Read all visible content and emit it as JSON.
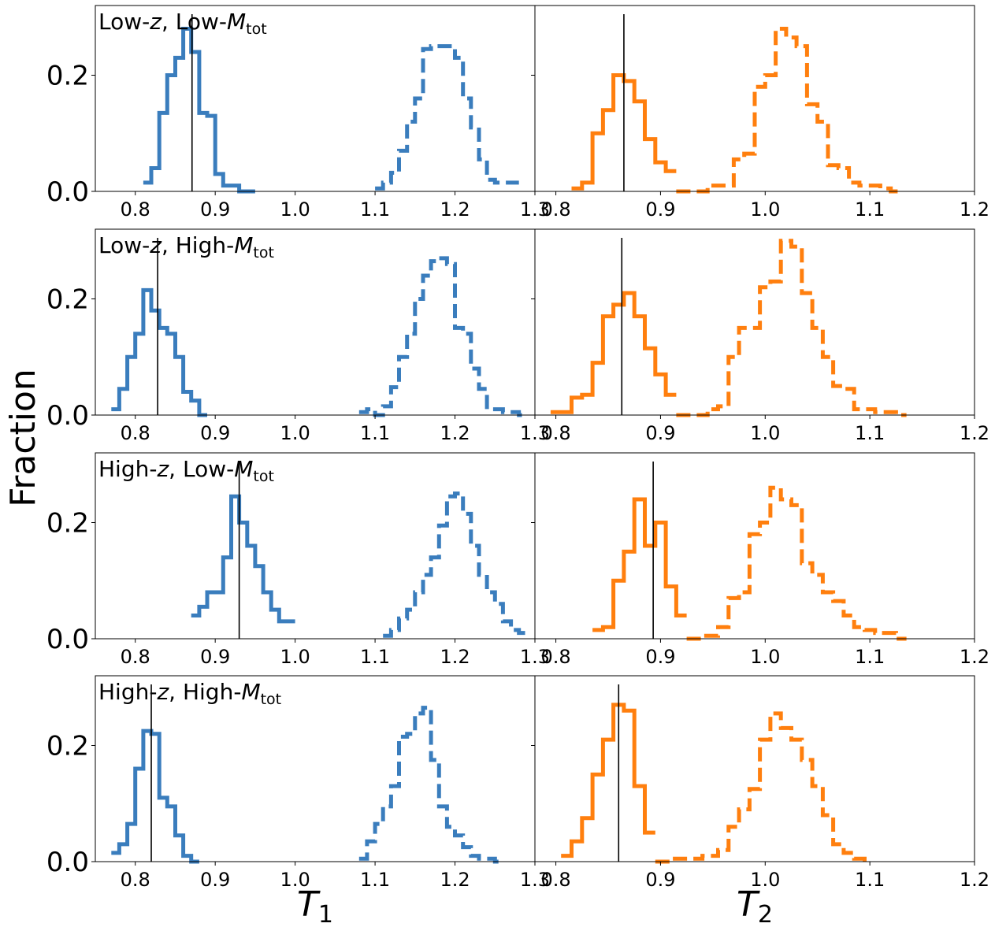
{
  "figure": {
    "ylabel": "Fraction",
    "xlabel_left": {
      "main": "T",
      "sub": "1"
    },
    "xlabel_right": {
      "main": "T",
      "sub": "2"
    },
    "colors": {
      "t1": "#3a7dbd",
      "t2": "#ff7f0e",
      "vline": "#000000",
      "frame": "#000000"
    }
  },
  "chart_data": [
    {
      "type": "histogram",
      "panel": "row1-left",
      "title_parts": [
        "Low-",
        "z",
        ", Low-",
        "M",
        "tot"
      ],
      "xlim": [
        0.75,
        1.3
      ],
      "ylim": [
        0,
        0.32
      ],
      "xticks": [
        "0.8",
        "0.9",
        "1.0",
        "1.1",
        "1.2",
        "1.3"
      ],
      "yticks": [
        "0.0",
        "0.2"
      ],
      "vline": 0.871,
      "series": [
        {
          "style": "solid",
          "edges": [
            0.81,
            0.82,
            0.83,
            0.84,
            0.85,
            0.86,
            0.87,
            0.88,
            0.89,
            0.9,
            0.91,
            0.92,
            0.93,
            0.94,
            0.95
          ],
          "values": [
            0.015,
            0.04,
            0.135,
            0.2,
            0.23,
            0.28,
            0.24,
            0.135,
            0.13,
            0.03,
            0.01,
            0.01,
            0.0,
            0.0
          ]
        },
        {
          "style": "dashed",
          "edges": [
            1.1,
            1.11,
            1.12,
            1.13,
            1.14,
            1.15,
            1.16,
            1.17,
            1.18,
            1.19,
            1.2,
            1.21,
            1.22,
            1.23,
            1.24,
            1.25,
            1.26,
            1.27,
            1.28
          ],
          "values": [
            0.005,
            0.015,
            0.032,
            0.07,
            0.12,
            0.16,
            0.245,
            0.25,
            0.25,
            0.25,
            0.23,
            0.16,
            0.11,
            0.055,
            0.02,
            0.015,
            0.015,
            0.015
          ]
        }
      ]
    },
    {
      "type": "histogram",
      "panel": "row1-right",
      "xlim": [
        0.78,
        1.2
      ],
      "ylim": [
        0,
        0.32
      ],
      "xticks": [
        "0.8",
        "0.9",
        "1.0",
        "1.1",
        "1.2"
      ],
      "vline": 0.865,
      "series": [
        {
          "style": "solid",
          "edges": [
            0.815,
            0.825,
            0.835,
            0.845,
            0.855,
            0.865,
            0.875,
            0.885,
            0.895,
            0.905,
            0.915
          ],
          "values": [
            0.005,
            0.015,
            0.1,
            0.14,
            0.2,
            0.19,
            0.155,
            0.09,
            0.05,
            0.035
          ]
        },
        {
          "style": "dashed",
          "edges": [
            0.915,
            0.93,
            0.945,
            0.96,
            0.97,
            0.98,
            0.99,
            1.0,
            1.01,
            1.02,
            1.03,
            1.04,
            1.05,
            1.06,
            1.07,
            1.08,
            1.09,
            1.1,
            1.11,
            1.12,
            1.13
          ],
          "values": [
            0.0,
            0.0,
            0.01,
            0.01,
            0.055,
            0.065,
            0.18,
            0.2,
            0.28,
            0.265,
            0.25,
            0.15,
            0.12,
            0.045,
            0.04,
            0.015,
            0.01,
            0.01,
            0.005,
            0.0
          ]
        }
      ]
    },
    {
      "type": "histogram",
      "panel": "row2-left",
      "title_parts": [
        "Low-",
        "z",
        ", High-",
        "M",
        "tot"
      ],
      "xlim": [
        0.75,
        1.3
      ],
      "ylim": [
        0,
        0.32
      ],
      "xticks": [
        "0.8",
        "0.9",
        "1.0",
        "1.1",
        "1.2",
        "1.3"
      ],
      "yticks": [
        "0.0",
        "0.2"
      ],
      "vline": 0.828,
      "series": [
        {
          "style": "solid",
          "edges": [
            0.77,
            0.78,
            0.79,
            0.8,
            0.81,
            0.82,
            0.83,
            0.84,
            0.85,
            0.86,
            0.87,
            0.88,
            0.89
          ],
          "values": [
            0.01,
            0.045,
            0.1,
            0.14,
            0.215,
            0.18,
            0.15,
            0.14,
            0.1,
            0.04,
            0.025,
            0.0
          ]
        },
        {
          "style": "dashed",
          "edges": [
            1.08,
            1.09,
            1.1,
            1.11,
            1.12,
            1.13,
            1.14,
            1.15,
            1.16,
            1.17,
            1.18,
            1.19,
            1.2,
            1.21,
            1.22,
            1.23,
            1.24,
            1.25,
            1.26,
            1.27,
            1.28,
            1.29
          ],
          "values": [
            0.005,
            0.01,
            0.0,
            0.015,
            0.048,
            0.1,
            0.14,
            0.2,
            0.24,
            0.265,
            0.27,
            0.26,
            0.15,
            0.14,
            0.08,
            0.045,
            0.01,
            0.01,
            0.005,
            0.005,
            0.0
          ]
        }
      ]
    },
    {
      "type": "histogram",
      "panel": "row2-right",
      "xlim": [
        0.78,
        1.2
      ],
      "ylim": [
        0,
        0.32
      ],
      "xticks": [
        "0.8",
        "0.9",
        "1.0",
        "1.1",
        "1.2"
      ],
      "vline": 0.863,
      "series": [
        {
          "style": "solid",
          "edges": [
            0.795,
            0.805,
            0.815,
            0.825,
            0.835,
            0.845,
            0.855,
            0.865,
            0.875,
            0.885,
            0.895,
            0.905,
            0.915
          ],
          "values": [
            0.005,
            0.005,
            0.03,
            0.035,
            0.09,
            0.17,
            0.19,
            0.21,
            0.17,
            0.115,
            0.07,
            0.035
          ]
        },
        {
          "style": "dashed",
          "edges": [
            0.915,
            0.93,
            0.945,
            0.955,
            0.965,
            0.975,
            0.985,
            0.995,
            1.005,
            1.015,
            1.025,
            1.035,
            1.045,
            1.055,
            1.065,
            1.075,
            1.085,
            1.095,
            1.105,
            1.115,
            1.125,
            1.135
          ],
          "values": [
            0.0,
            0.0,
            0.01,
            0.015,
            0.1,
            0.15,
            0.15,
            0.22,
            0.23,
            0.3,
            0.29,
            0.21,
            0.15,
            0.1,
            0.05,
            0.045,
            0.01,
            0.01,
            0.005,
            0.005,
            0.0
          ]
        }
      ]
    },
    {
      "type": "histogram",
      "panel": "row3-left",
      "title_parts": [
        "High-",
        "z",
        ", Low-",
        "M",
        "tot"
      ],
      "xlim": [
        0.75,
        1.3
      ],
      "ylim": [
        0,
        0.32
      ],
      "xticks": [
        "0.8",
        "0.9",
        "1.0",
        "1.1",
        "1.2",
        "1.3"
      ],
      "yticks": [
        "0.0",
        "0.2"
      ],
      "vline": 0.93,
      "series": [
        {
          "style": "solid",
          "edges": [
            0.87,
            0.88,
            0.89,
            0.9,
            0.91,
            0.92,
            0.93,
            0.94,
            0.95,
            0.96,
            0.97,
            0.98,
            0.99,
            1.0
          ],
          "values": [
            0.04,
            0.055,
            0.08,
            0.08,
            0.14,
            0.245,
            0.2,
            0.16,
            0.125,
            0.08,
            0.05,
            0.03,
            0.03
          ]
        },
        {
          "style": "dashed",
          "edges": [
            1.11,
            1.12,
            1.13,
            1.14,
            1.15,
            1.16,
            1.17,
            1.18,
            1.19,
            1.2,
            1.21,
            1.22,
            1.23,
            1.24,
            1.25,
            1.26,
            1.27,
            1.28,
            1.29
          ],
          "values": [
            0.005,
            0.015,
            0.035,
            0.05,
            0.08,
            0.11,
            0.14,
            0.195,
            0.245,
            0.25,
            0.215,
            0.16,
            0.11,
            0.08,
            0.06,
            0.03,
            0.015,
            0.01
          ]
        }
      ]
    },
    {
      "type": "histogram",
      "panel": "row3-right",
      "xlim": [
        0.78,
        1.2
      ],
      "ylim": [
        0,
        0.32
      ],
      "xticks": [
        "0.8",
        "0.9",
        "1.0",
        "1.1",
        "1.2"
      ],
      "vline": 0.893,
      "series": [
        {
          "style": "solid",
          "edges": [
            0.835,
            0.845,
            0.855,
            0.865,
            0.875,
            0.885,
            0.895,
            0.905,
            0.915,
            0.925
          ],
          "values": [
            0.015,
            0.02,
            0.1,
            0.15,
            0.24,
            0.16,
            0.2,
            0.09,
            0.04
          ]
        },
        {
          "style": "dashed",
          "edges": [
            0.925,
            0.94,
            0.955,
            0.965,
            0.975,
            0.985,
            0.995,
            1.005,
            1.015,
            1.025,
            1.035,
            1.045,
            1.055,
            1.065,
            1.075,
            1.085,
            1.095,
            1.105,
            1.115,
            1.125,
            1.135
          ],
          "values": [
            0.0,
            0.005,
            0.02,
            0.07,
            0.08,
            0.18,
            0.2,
            0.26,
            0.24,
            0.23,
            0.13,
            0.11,
            0.08,
            0.065,
            0.04,
            0.02,
            0.015,
            0.01,
            0.01,
            0.0
          ]
        }
      ]
    },
    {
      "type": "histogram",
      "panel": "row4-left",
      "title_parts": [
        "High-",
        "z",
        ", High-",
        "M",
        "tot"
      ],
      "xlim": [
        0.75,
        1.3
      ],
      "ylim": [
        0,
        0.32
      ],
      "xticks": [
        "0.8",
        "0.9",
        "1.0",
        "1.1",
        "1.2",
        "1.3"
      ],
      "yticks": [
        "0.0",
        "0.2"
      ],
      "vline": 0.82,
      "series": [
        {
          "style": "solid",
          "edges": [
            0.77,
            0.78,
            0.79,
            0.8,
            0.81,
            0.82,
            0.83,
            0.84,
            0.85,
            0.86,
            0.87,
            0.88
          ],
          "values": [
            0.015,
            0.03,
            0.065,
            0.16,
            0.225,
            0.22,
            0.11,
            0.095,
            0.045,
            0.01,
            0.0
          ]
        },
        {
          "style": "dashed",
          "edges": [
            1.08,
            1.09,
            1.1,
            1.11,
            1.12,
            1.13,
            1.14,
            1.15,
            1.16,
            1.17,
            1.18,
            1.19,
            1.2,
            1.21,
            1.22,
            1.23,
            1.24,
            1.25,
            1.26
          ],
          "values": [
            0.005,
            0.035,
            0.065,
            0.095,
            0.13,
            0.215,
            0.22,
            0.255,
            0.265,
            0.175,
            0.095,
            0.06,
            0.045,
            0.025,
            0.01,
            0.005,
            0.005,
            0.0
          ]
        }
      ]
    },
    {
      "type": "histogram",
      "panel": "row4-right",
      "xlim": [
        0.78,
        1.2
      ],
      "ylim": [
        0,
        0.32
      ],
      "xticks": [
        "0.8",
        "0.9",
        "1.0",
        "1.1",
        "1.2"
      ],
      "vline": 0.86,
      "series": [
        {
          "style": "solid",
          "edges": [
            0.805,
            0.815,
            0.825,
            0.835,
            0.845,
            0.855,
            0.865,
            0.875,
            0.885,
            0.895
          ],
          "values": [
            0.01,
            0.035,
            0.075,
            0.15,
            0.21,
            0.27,
            0.26,
            0.13,
            0.05
          ]
        },
        {
          "style": "dashed",
          "edges": [
            0.895,
            0.91,
            0.925,
            0.94,
            0.955,
            0.965,
            0.975,
            0.985,
            0.995,
            1.005,
            1.015,
            1.025,
            1.035,
            1.045,
            1.055,
            1.065,
            1.075,
            1.085,
            1.095
          ],
          "values": [
            0.0,
            0.005,
            0.005,
            0.01,
            0.02,
            0.06,
            0.09,
            0.125,
            0.21,
            0.255,
            0.23,
            0.21,
            0.175,
            0.13,
            0.08,
            0.03,
            0.015,
            0.005,
            0.0
          ]
        }
      ]
    }
  ]
}
